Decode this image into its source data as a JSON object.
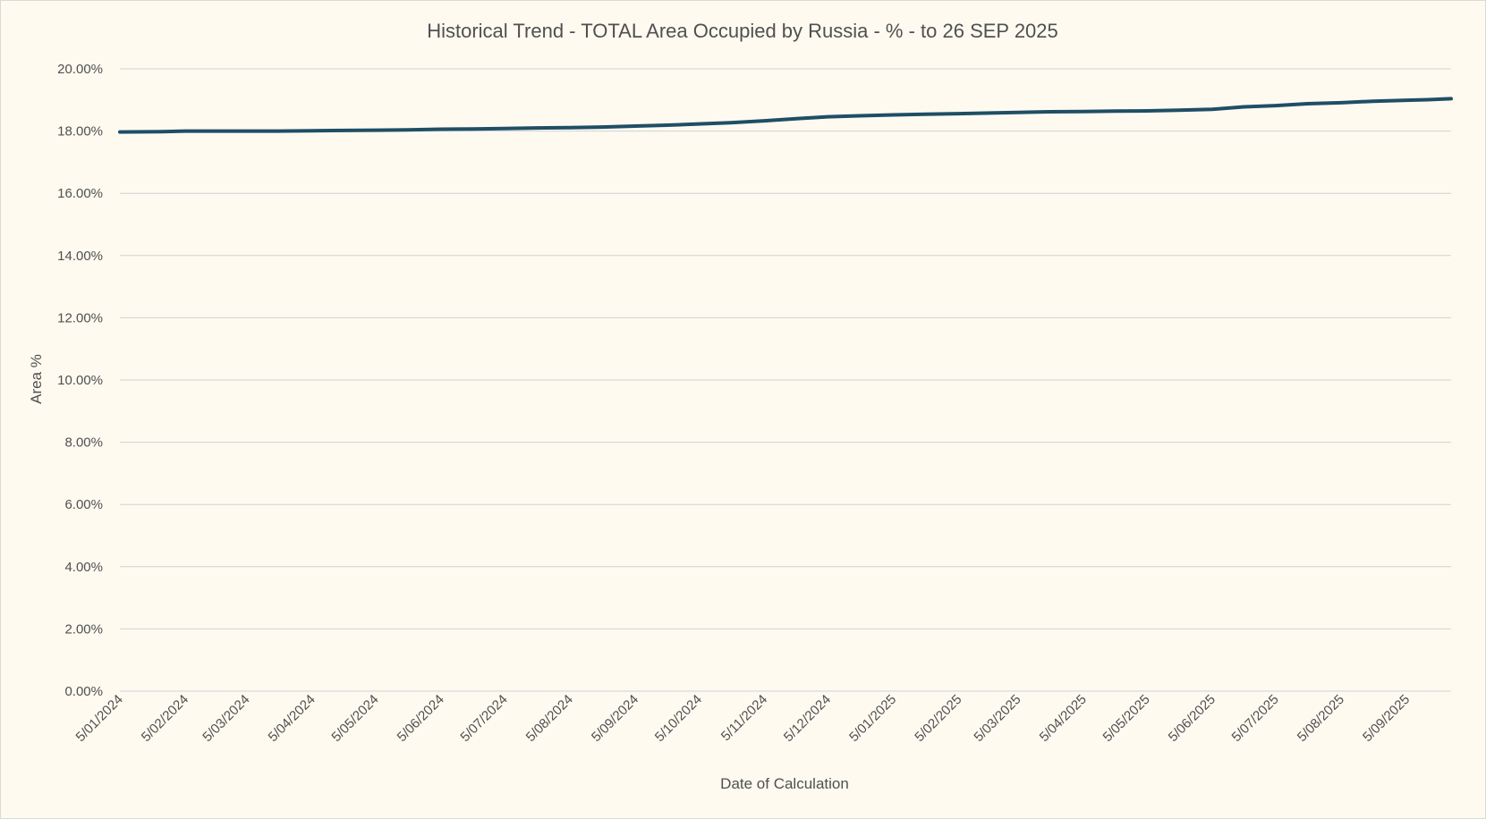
{
  "chart_data": {
    "type": "line",
    "title": "Historical Trend - TOTAL Area Occupied by Russia - % - to 26 SEP 2025",
    "xlabel": "Date of Calculation",
    "ylabel": "Area %",
    "ylim": [
      0,
      20
    ],
    "yticks": [
      "0.00%",
      "2.00%",
      "4.00%",
      "6.00%",
      "8.00%",
      "10.00%",
      "12.00%",
      "14.00%",
      "16.00%",
      "18.00%",
      "20.00%"
    ],
    "xlim": [
      "2024-01-05",
      "2025-09-26"
    ],
    "xticks": [
      {
        "date": "2024-01-05",
        "label": "5/01/2024"
      },
      {
        "date": "2024-02-05",
        "label": "5/02/2024"
      },
      {
        "date": "2024-03-05",
        "label": "5/03/2024"
      },
      {
        "date": "2024-04-05",
        "label": "5/04/2024"
      },
      {
        "date": "2024-05-05",
        "label": "5/05/2024"
      },
      {
        "date": "2024-06-05",
        "label": "5/06/2024"
      },
      {
        "date": "2024-07-05",
        "label": "5/07/2024"
      },
      {
        "date": "2024-08-05",
        "label": "5/08/2024"
      },
      {
        "date": "2024-09-05",
        "label": "5/09/2024"
      },
      {
        "date": "2024-10-05",
        "label": "5/10/2024"
      },
      {
        "date": "2024-11-05",
        "label": "5/11/2024"
      },
      {
        "date": "2024-12-05",
        "label": "5/12/2024"
      },
      {
        "date": "2025-01-05",
        "label": "5/01/2025"
      },
      {
        "date": "2025-02-05",
        "label": "5/02/2025"
      },
      {
        "date": "2025-03-05",
        "label": "5/03/2025"
      },
      {
        "date": "2025-04-05",
        "label": "5/04/2025"
      },
      {
        "date": "2025-05-05",
        "label": "5/05/2025"
      },
      {
        "date": "2025-06-05",
        "label": "5/06/2025"
      },
      {
        "date": "2025-07-05",
        "label": "5/07/2025"
      },
      {
        "date": "2025-08-05",
        "label": "5/08/2025"
      },
      {
        "date": "2025-09-05",
        "label": "5/09/2025"
      }
    ],
    "grid": true,
    "legend": "none",
    "series": [
      {
        "color": "#1f4e66",
        "points": [
          {
            "x": "2024-01-05",
            "y": 17.97
          },
          {
            "x": "2024-01-25",
            "y": 17.98
          },
          {
            "x": "2024-02-05",
            "y": 18.0
          },
          {
            "x": "2024-02-20",
            "y": 18.0
          },
          {
            "x": "2024-03-05",
            "y": 18.0
          },
          {
            "x": "2024-03-20",
            "y": 18.0
          },
          {
            "x": "2024-04-05",
            "y": 18.01
          },
          {
            "x": "2024-04-20",
            "y": 18.02
          },
          {
            "x": "2024-05-05",
            "y": 18.03
          },
          {
            "x": "2024-05-20",
            "y": 18.04
          },
          {
            "x": "2024-06-05",
            "y": 18.06
          },
          {
            "x": "2024-06-20",
            "y": 18.07
          },
          {
            "x": "2024-07-05",
            "y": 18.08
          },
          {
            "x": "2024-07-20",
            "y": 18.1
          },
          {
            "x": "2024-08-05",
            "y": 18.11
          },
          {
            "x": "2024-08-20",
            "y": 18.13
          },
          {
            "x": "2024-09-05",
            "y": 18.16
          },
          {
            "x": "2024-09-20",
            "y": 18.19
          },
          {
            "x": "2024-10-05",
            "y": 18.23
          },
          {
            "x": "2024-10-20",
            "y": 18.27
          },
          {
            "x": "2024-11-05",
            "y": 18.33
          },
          {
            "x": "2024-11-20",
            "y": 18.4
          },
          {
            "x": "2024-12-05",
            "y": 18.46
          },
          {
            "x": "2024-12-20",
            "y": 18.49
          },
          {
            "x": "2025-01-05",
            "y": 18.52
          },
          {
            "x": "2025-01-20",
            "y": 18.54
          },
          {
            "x": "2025-02-05",
            "y": 18.56
          },
          {
            "x": "2025-02-20",
            "y": 18.58
          },
          {
            "x": "2025-03-05",
            "y": 18.6
          },
          {
            "x": "2025-03-20",
            "y": 18.62
          },
          {
            "x": "2025-04-05",
            "y": 18.63
          },
          {
            "x": "2025-04-20",
            "y": 18.64
          },
          {
            "x": "2025-05-05",
            "y": 18.65
          },
          {
            "x": "2025-05-20",
            "y": 18.67
          },
          {
            "x": "2025-06-05",
            "y": 18.7
          },
          {
            "x": "2025-06-20",
            "y": 18.78
          },
          {
            "x": "2025-07-05",
            "y": 18.82
          },
          {
            "x": "2025-07-20",
            "y": 18.88
          },
          {
            "x": "2025-08-05",
            "y": 18.91
          },
          {
            "x": "2025-08-20",
            "y": 18.96
          },
          {
            "x": "2025-09-05",
            "y": 18.99
          },
          {
            "x": "2025-09-15",
            "y": 19.01
          },
          {
            "x": "2025-09-26",
            "y": 19.04
          }
        ]
      }
    ]
  }
}
